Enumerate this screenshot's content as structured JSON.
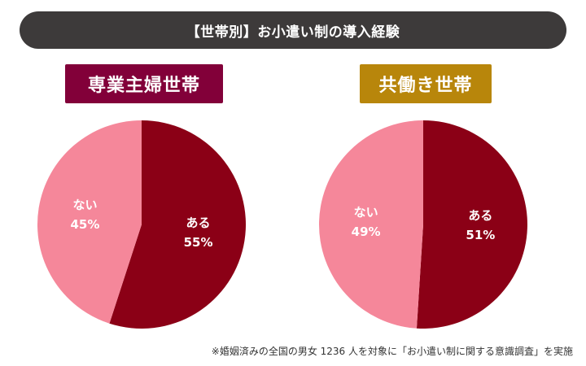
{
  "title": "【世帯別】お小遣い制の導入経験",
  "footnote": "※婚姻済みの全国の男女 1236 人を対象に「お小遣い制に関する意識調査」を実施",
  "colors": {
    "title_bg": "#3d3a3a",
    "yes": "#8b0016",
    "no": "#f5879a",
    "label_left": "#820039",
    "label_right": "#b8860b"
  },
  "chart_data": [
    {
      "type": "pie",
      "title": "専業主婦世帯",
      "slices": [
        {
          "label": "ある",
          "value": 55,
          "value_text": "55%",
          "color": "#8b0016"
        },
        {
          "label": "ない",
          "value": 45,
          "value_text": "45%",
          "color": "#f5879a"
        }
      ]
    },
    {
      "type": "pie",
      "title": "共働き世帯",
      "slices": [
        {
          "label": "ある",
          "value": 51,
          "value_text": "51%",
          "color": "#8b0016"
        },
        {
          "label": "ない",
          "value": 49,
          "value_text": "49%",
          "color": "#f5879a"
        }
      ]
    }
  ]
}
